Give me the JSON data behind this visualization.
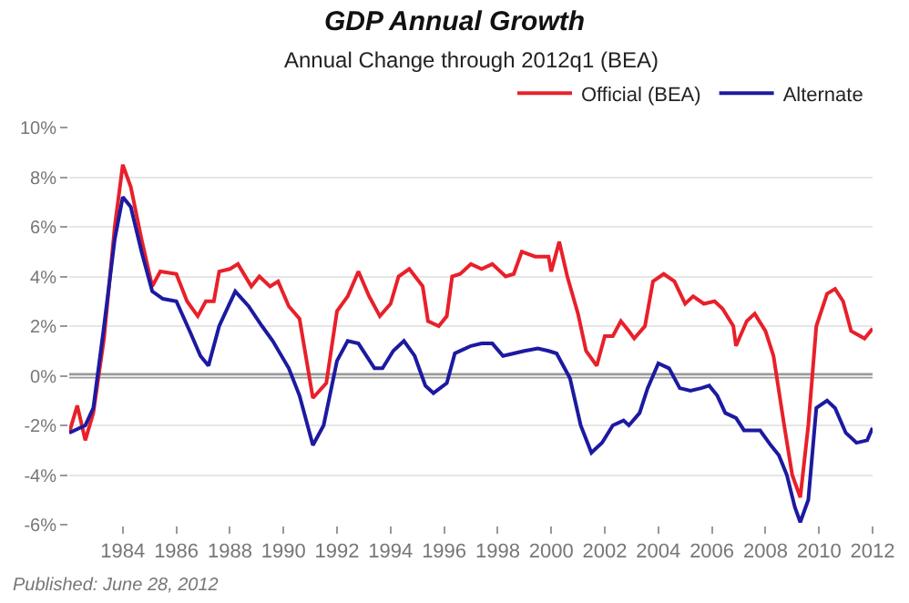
{
  "chart_data": {
    "type": "line",
    "title": "GDP Annual Growth",
    "subtitle": "Annual Change through 2012q1 (BEA)",
    "x": [
      1982.0,
      1982.3,
      1982.6,
      1982.9,
      1983.3,
      1983.7,
      1984.0,
      1984.3,
      1984.7,
      1985.1,
      1985.4,
      1986.0,
      1986.4,
      1986.8,
      1987.1,
      1987.4,
      1987.6,
      1988.0,
      1988.3,
      1988.8,
      1989.1,
      1989.5,
      1989.8,
      1990.2,
      1990.6,
      1991.1,
      1991.6,
      1992.0,
      1992.4,
      1992.8,
      1993.2,
      1993.6,
      1994.0,
      1994.3,
      1994.7,
      1995.2,
      1995.4,
      1995.8,
      1996.1,
      1996.3,
      1996.6,
      1997.0,
      1997.4,
      1997.8,
      1998.3,
      1998.6,
      1998.9,
      1999.4,
      1999.9,
      2000.0,
      2000.3,
      2000.6,
      2001.0,
      2001.3,
      2001.7,
      2002.0,
      2002.3,
      2002.6,
      2002.9,
      2003.1,
      2003.5,
      2003.8,
      2004.2,
      2004.6,
      2005.0,
      2005.3,
      2005.7,
      2006.1,
      2006.4,
      2006.8,
      2006.9,
      2007.3,
      2007.6,
      2008.0,
      2008.3,
      2008.7,
      2009.0,
      2009.3,
      2009.6,
      2009.9,
      2010.3,
      2010.6,
      2010.9,
      2011.2,
      2011.7,
      2012.0
    ],
    "series": [
      {
        "name": "Official (BEA)",
        "color": "#e8202a",
        "values": [
          -2.3,
          -1.2,
          -2.6,
          -1.5,
          1.5,
          6,
          8.5,
          7.6,
          5.5,
          3.6,
          4.2,
          4.1,
          3.0,
          2.4,
          3.0,
          3.0,
          4.2,
          4.3,
          4.5,
          3.6,
          4.0,
          3.6,
          3.8,
          2.8,
          2.3,
          -0.9,
          -0.3,
          2.6,
          3.2,
          4.2,
          3.2,
          2.4,
          2.9,
          4.0,
          4.3,
          3.6,
          2.2,
          2.0,
          2.4,
          4.0,
          4.1,
          4.5,
          4.3,
          4.5,
          4.0,
          4.1,
          5.0,
          4.8,
          4.8,
          4.2,
          5.4,
          4.0,
          2.5,
          1.0,
          0.4,
          1.6,
          1.6,
          2.2,
          1.8,
          1.5,
          2.0,
          3.8,
          4.1,
          3.8,
          2.9,
          3.2,
          2.9,
          3.0,
          2.7,
          2.0,
          1.2,
          2.2,
          2.5,
          1.8,
          0.8,
          -2.0,
          -4.0,
          -4.9,
          -2.0,
          2.0,
          3.3,
          3.5,
          3.0,
          1.8,
          1.5,
          1.9
        ]
      },
      {
        "name": "Alternate",
        "color": "#1c1aa0",
        "x": [
          1982.0,
          1982.6,
          1982.9,
          1983.3,
          1983.7,
          1984.0,
          1984.3,
          1984.7,
          1985.1,
          1985.5,
          1986.0,
          1986.5,
          1986.9,
          1987.2,
          1987.6,
          1988.2,
          1988.7,
          1989.2,
          1989.6,
          1990.2,
          1990.6,
          1991.1,
          1991.5,
          1992.0,
          1992.4,
          1992.8,
          1993.4,
          1993.7,
          1994.1,
          1994.5,
          1994.9,
          1995.3,
          1995.6,
          1996.1,
          1996.4,
          1997.0,
          1997.4,
          1997.8,
          1998.2,
          1998.6,
          1999.0,
          1999.5,
          1999.9,
          2000.2,
          2000.7,
          2001.1,
          2001.5,
          2001.9,
          2002.3,
          2002.7,
          2002.9,
          2003.3,
          2003.6,
          2004.0,
          2004.4,
          2004.8,
          2005.2,
          2005.6,
          2005.9,
          2006.2,
          2006.5,
          2006.9,
          2007.2,
          2007.8,
          2008.2,
          2008.5,
          2008.8,
          2009.1,
          2009.3,
          2009.6,
          2009.9,
          2010.3,
          2010.6,
          2011.0,
          2011.4,
          2011.8,
          2012.0
        ],
        "values": [
          -2.3,
          -2.0,
          -1.3,
          2,
          5.5,
          7.2,
          6.8,
          5.0,
          3.4,
          3.1,
          3.0,
          1.8,
          0.8,
          0.4,
          2.0,
          3.4,
          2.8,
          2.0,
          1.4,
          0.3,
          -0.8,
          -2.8,
          -2.0,
          0.6,
          1.4,
          1.3,
          0.3,
          0.3,
          1.0,
          1.4,
          0.8,
          -0.4,
          -0.7,
          -0.3,
          0.9,
          1.2,
          1.3,
          1.3,
          0.8,
          0.9,
          1.0,
          1.1,
          1.0,
          0.9,
          -0.1,
          -2.0,
          -3.1,
          -2.7,
          -2.0,
          -1.8,
          -2.0,
          -1.5,
          -0.5,
          0.5,
          0.3,
          -0.5,
          -0.6,
          -0.5,
          -0.4,
          -0.8,
          -1.5,
          -1.7,
          -2.2,
          -2.2,
          -2.8,
          -3.2,
          -4.0,
          -5.3,
          -5.9,
          -5.0,
          -1.3,
          -1.0,
          -1.3,
          -2.3,
          -2.7,
          -2.6,
          -2.1
        ]
      }
    ],
    "xlim": [
      1982,
      2012
    ],
    "xticks": [
      1984,
      1986,
      1988,
      1990,
      1992,
      1994,
      1996,
      1998,
      2000,
      2002,
      2004,
      2006,
      2008,
      2010,
      2012
    ],
    "ylim": [
      -6,
      10
    ],
    "yticks": [
      {
        "value": -6,
        "label": "-6%"
      },
      {
        "value": -4,
        "label": "-4%"
      },
      {
        "value": -2,
        "label": "-2%"
      },
      {
        "value": 0,
        "label": "0%"
      },
      {
        "value": 2,
        "label": "2%"
      },
      {
        "value": 4,
        "label": "4%"
      },
      {
        "value": 6,
        "label": "6%"
      },
      {
        "value": 8,
        "label": "8%"
      },
      {
        "value": 10,
        "label": "10%"
      }
    ],
    "ref_lines": [
      {
        "axis": "y",
        "value": 0,
        "color": "#999999"
      }
    ],
    "annotations": [
      "Published: June 28, 2012"
    ],
    "grid": "y",
    "legend": "top right",
    "marker": "none",
    "line_style": "solid"
  }
}
